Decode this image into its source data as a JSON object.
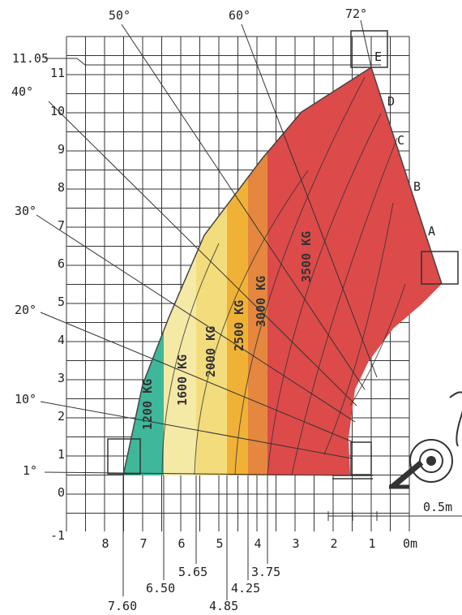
{
  "chart_data": {
    "type": "load-chart",
    "x_axis": {
      "ticks": [
        "8",
        "7",
        "6",
        "5",
        "4",
        "3",
        "2",
        "1",
        "0m"
      ],
      "reach_marks": [
        "7.60",
        "6.50",
        "5.65",
        "4.85",
        "4.25",
        "3.75"
      ]
    },
    "y_axis": {
      "ticks": [
        "-1",
        "0",
        "1",
        "2",
        "3",
        "4",
        "5",
        "6",
        "7",
        "8",
        "9",
        "10",
        "11"
      ],
      "max_height_label": "11.05"
    },
    "zones": [
      {
        "label": "1200 KG",
        "color": "#3fb79a"
      },
      {
        "label": "1600 KG",
        "color": "#f5e9a6"
      },
      {
        "label": "2000 KG",
        "color": "#f3dc7c"
      },
      {
        "label": "2500 KG",
        "color": "#f0b236"
      },
      {
        "label": "3000 KG",
        "color": "#e5873f"
      },
      {
        "label": "3500 KG",
        "color": "#dd4a4a"
      }
    ],
    "boom_angles": [
      "72°",
      "60°",
      "50°",
      "40°",
      "30°",
      "20°",
      "10°",
      "1°"
    ],
    "extension_points": [
      "A",
      "B",
      "C",
      "D",
      "E"
    ],
    "scale_label": "0.5m"
  }
}
